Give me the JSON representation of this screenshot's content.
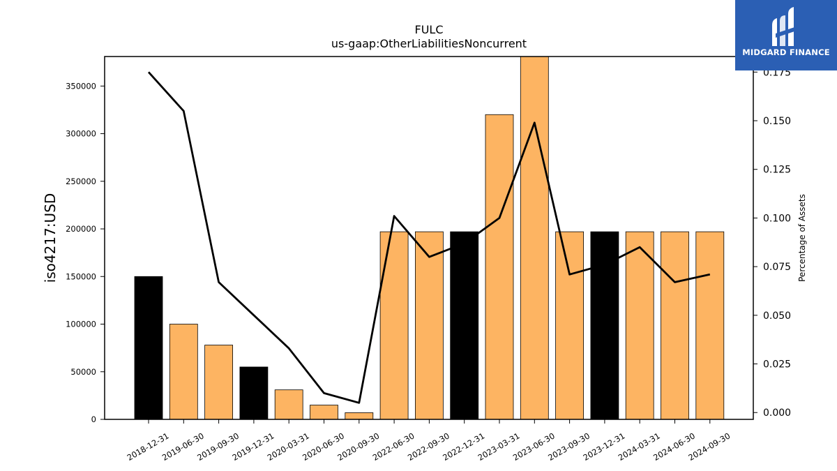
{
  "logo": {
    "text": "MIDGARD FINANCE"
  },
  "chart_data": {
    "type": "bar",
    "title": "FULC",
    "subtitle": "us-gaap:OtherLiabilitiesNoncurrent",
    "ylabel": "iso4217:USD",
    "y2label": "Percentage of Assets",
    "categories": [
      "2018-12-31",
      "2019-06-30",
      "2019-09-30",
      "2019-12-31",
      "2020-03-31",
      "2020-06-30",
      "2020-09-30",
      "2022-06-30",
      "2022-09-30",
      "2022-12-31",
      "2023-03-31",
      "2023-06-30",
      "2023-09-30",
      "2023-12-31",
      "2024-03-31",
      "2024-06-30",
      "2024-09-30"
    ],
    "values": [
      150000,
      100000,
      78000,
      55000,
      31000,
      15000,
      7000,
      197000,
      197000,
      197000,
      320000,
      383000,
      197000,
      197000,
      197000,
      197000,
      197000
    ],
    "bar_colors": [
      "#000000",
      "#fdb462",
      "#fdb462",
      "#000000",
      "#fdb462",
      "#fdb462",
      "#fdb462",
      "#fdb462",
      "#fdb462",
      "#000000",
      "#fdb462",
      "#fdb462",
      "#fdb462",
      "#000000",
      "#fdb462",
      "#fdb462",
      "#fdb462"
    ],
    "line_values": [
      0.175,
      0.155,
      0.067,
      0.05,
      0.033,
      0.01,
      0.005,
      0.101,
      0.08,
      0.087,
      0.1,
      0.149,
      0.071,
      0.076,
      0.085,
      0.067,
      0.071
    ],
    "ylim": [
      0,
      381000
    ],
    "y2lim": [
      -0.0035,
      0.183
    ],
    "yticks": [
      0,
      50000,
      100000,
      150000,
      200000,
      250000,
      300000,
      350000
    ],
    "y2ticks": [
      "0.000",
      "0.025",
      "0.050",
      "0.075",
      "0.100",
      "0.125",
      "0.150",
      "0.175"
    ],
    "colors": {
      "highlight": "#000000",
      "bar": "#fdb462",
      "line": "#000000"
    }
  }
}
